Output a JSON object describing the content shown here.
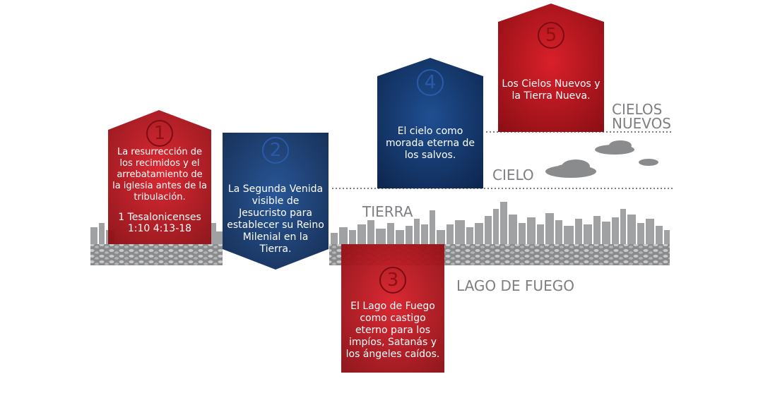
{
  "cards": [
    {
      "number": "1",
      "text": "La resurrección de los recimidos y el arrebatamiento de la iglesia antes de la tribulación.",
      "reference": "1 Tesalonicenses 1:10 4:13-18",
      "color": "#b5141c"
    },
    {
      "number": "2",
      "text": "La Segunda Venida visible de Jesucristo para establecer su Reino Milenial en la Tierra.",
      "color": "#173a6e"
    },
    {
      "number": "3",
      "text": "El Lago de Fuego como castigo eterno para los impíos, Satanás y los ángeles caídos.",
      "color": "#b5141c"
    },
    {
      "number": "4",
      "text": "El cielo como morada eterna de los salvos.",
      "color": "#173a6e"
    },
    {
      "number": "5",
      "text": "Los Cielos Nuevos y la Tierra Nueva.",
      "color": "#b5141c"
    }
  ],
  "labels": {
    "cielos_nuevos_1": "CIELOS",
    "cielos_nuevos_2": "NUEVOS",
    "cielo": "CIELO",
    "tierra": "TIERRA",
    "lago_de_fuego": "LAGO DE FUEGO"
  },
  "colors": {
    "red": "#b5141c",
    "blue": "#173a6e",
    "gray": "#7d7f82",
    "ground": "#8e8f91"
  }
}
